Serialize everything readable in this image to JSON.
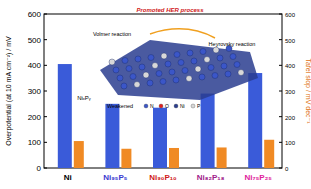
{
  "chart_data": {
    "type": "bar",
    "categories": [
      "Ni",
      "Ni₉₅P₅",
      "Ni₉₀P₁₀",
      "Ni₈₂P₁₈",
      "Ni₇₅P₂₅"
    ],
    "y_label": "Overpotential (at 10 mA cm⁻²) / mV",
    "y2_label": "Tafel slop / mV dec⁻¹",
    "series": [
      {
        "color": "#3a5bd9",
        "values": [
          405,
          250,
          235,
          290,
          370
        ]
      },
      {
        "color": "#f08a24",
        "values": [
          105,
          75,
          78,
          80,
          110
        ],
        "axis": "y2"
      }
    ],
    "ylim": [
      0,
      600
    ],
    "yticks": [
      0,
      100,
      200,
      300,
      400,
      500,
      600
    ],
    "y2lim": [
      0,
      600
    ],
    "y2ticks": [
      0,
      100,
      200,
      300,
      400,
      500,
      600
    ],
    "annotations": [
      "Promoted HER process",
      "Volmer reaction",
      "Heyrovsky reaction",
      "Weakened",
      "NiₓPᵧ",
      "N",
      "O",
      "Ni",
      "P"
    ],
    "grid": false
  }
}
